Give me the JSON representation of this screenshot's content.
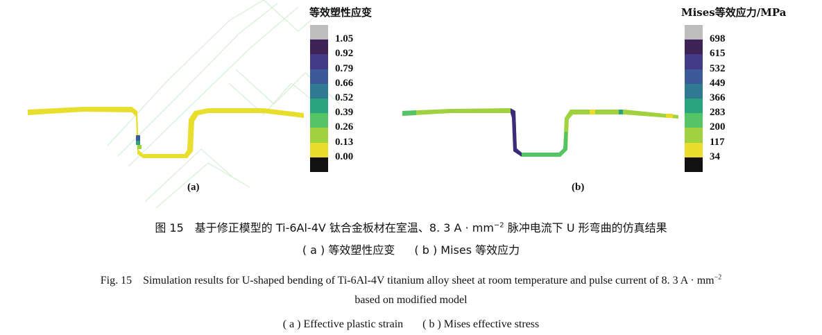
{
  "panel_a": {
    "legend_title": "等效塑性应变",
    "ticks": [
      "1.05",
      "0.92",
      "0.79",
      "0.66",
      "0.52",
      "0.39",
      "0.26",
      "0.13",
      "0.00"
    ],
    "label": "(a)"
  },
  "panel_b": {
    "legend_title": "Mises等效应力/MPa",
    "ticks": [
      "698",
      "615",
      "532",
      "449",
      "366",
      "283",
      "200",
      "117",
      "34"
    ],
    "label": "(b)"
  },
  "legend_colors": [
    "#bdbdbd",
    "#3d2356",
    "#443b88",
    "#3b5a97",
    "#2f7a92",
    "#2aa37f",
    "#55c466",
    "#9fd23e",
    "#e9dc2c",
    "#111111"
  ],
  "caption": {
    "cn_line1_pre": "图 15　基于修正模型的 Ti-6Al-4V 钛合金板材在室温、8. 3 A · mm",
    "cn_line1_sup": "−2",
    "cn_line1_post": " 脉冲电流下 U 形弯曲的仿真结果",
    "cn_line2_a": "( a )  等效塑性应变",
    "cn_line2_b": "( b )  Mises 等效应力",
    "en_line1_pre": "Fig. 15　Simulation results for U-shaped bending of Ti-6Al-4V titanium alloy sheet at room temperature and pulse current of 8. 3 A · mm",
    "en_line1_sup": "−2",
    "en_line2": "based on modified model",
    "en_line3_a": "( a )  Effective plastic strain",
    "en_line3_b": "( b )  Mises effective stress"
  }
}
